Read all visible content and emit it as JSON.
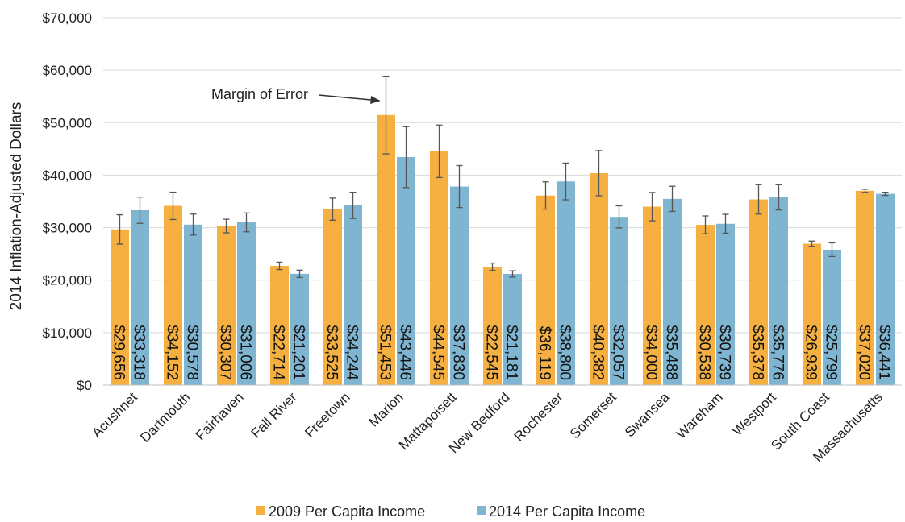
{
  "chart_data": {
    "type": "bar",
    "title": "",
    "ylabel": "2014 Inflation-Adjusted Dollars",
    "xlabel": "",
    "ylim": [
      0,
      70000
    ],
    "yticks": [
      0,
      10000,
      20000,
      30000,
      40000,
      50000,
      60000,
      70000
    ],
    "ytick_labels": [
      "$0",
      "$10,000",
      "$20,000",
      "$30,000",
      "$40,000",
      "$50,000",
      "$60,000",
      "$70,000"
    ],
    "grid": true,
    "legend_position": "bottom",
    "categories": [
      "Acushnet",
      "Dartmouth",
      "Fairhaven",
      "Fall River",
      "Freetown",
      "Marion",
      "Mattapoisett",
      "New Bedford",
      "Rochester",
      "Somerset",
      "Swansea",
      "Wareham",
      "Westport",
      "South Coast",
      "Massachusetts"
    ],
    "series": [
      {
        "name": "2009 Per Capita Income",
        "color": "#F5B041",
        "values": [
          29656,
          34152,
          30307,
          22714,
          33525,
          51453,
          44545,
          22545,
          36119,
          40382,
          34000,
          30538,
          35378,
          26939,
          37020
        ],
        "labels": [
          "$29,656",
          "$34,152",
          "$30,307",
          "$22,714",
          "$33,525",
          "$51,453",
          "$44,545",
          "$22,545",
          "$36,119",
          "$40,382",
          "$34,000",
          "$30,538",
          "$35,378",
          "$26,939",
          "$37,020"
        ],
        "error_margin": [
          2800,
          2600,
          1300,
          700,
          2100,
          7400,
          5000,
          700,
          2600,
          4300,
          2700,
          1700,
          2800,
          500,
          300
        ]
      },
      {
        "name": "2014 Per Capita Income",
        "color": "#7FB5D1",
        "values": [
          33318,
          30578,
          31006,
          21201,
          34244,
          43446,
          37830,
          21181,
          38800,
          32057,
          35488,
          30739,
          35776,
          25799,
          36441
        ],
        "labels": [
          "$33,318",
          "$30,578",
          "$31,006",
          "$21,201",
          "$34,244",
          "$43,446",
          "$37,830",
          "$21,181",
          "$38,800",
          "$32,057",
          "$35,488",
          "$30,739",
          "$35,776",
          "$25,799",
          "$36,441"
        ],
        "error_margin": [
          2500,
          2000,
          1800,
          700,
          2500,
          5800,
          4000,
          600,
          3500,
          2100,
          2400,
          1800,
          2400,
          1300,
          300
        ]
      }
    ],
    "annotation": {
      "text": "Margin of Error",
      "target_category": "Marion",
      "target_value": 54500
    }
  }
}
